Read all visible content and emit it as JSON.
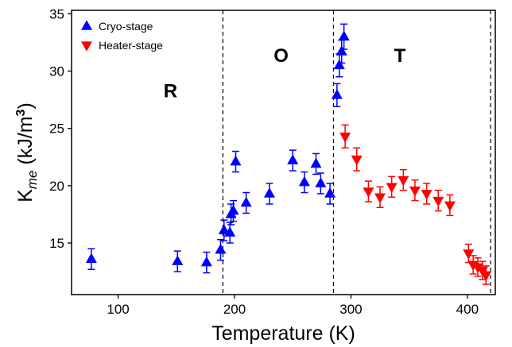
{
  "chart_data": {
    "type": "scatter",
    "xlabel": "Temperature (K)",
    "ylabel": {
      "main": "K",
      "sub": "me",
      "unit_pre": " (kJ/m",
      "sup": "3",
      "unit_post": ")"
    },
    "xlim": [
      60,
      424
    ],
    "ylim": [
      10.5,
      35.3
    ],
    "xticks": [
      100,
      200,
      300,
      400
    ],
    "yticks": [
      15,
      20,
      25,
      30,
      35
    ],
    "grid": false,
    "legend_position": "top-left",
    "phase_boundaries": [
      190,
      285,
      420
    ],
    "regions": [
      {
        "label": "R",
        "x": 145,
        "y": 27.7
      },
      {
        "label": "O",
        "x": 240,
        "y": 30.8
      },
      {
        "label": "T",
        "x": 342,
        "y": 30.8
      }
    ],
    "series": [
      {
        "name": "Cryo-stage",
        "color": "#0000ff",
        "marker": "triangle-up",
        "points": [
          {
            "x": 77,
            "y": 13.6,
            "err": 0.9
          },
          {
            "x": 151,
            "y": 13.4,
            "err": 0.9
          },
          {
            "x": 176,
            "y": 13.3,
            "err": 0.9
          },
          {
            "x": 188,
            "y": 14.4,
            "err": 0.9
          },
          {
            "x": 191,
            "y": 16.1,
            "err": 0.9
          },
          {
            "x": 196,
            "y": 15.9,
            "err": 0.9
          },
          {
            "x": 197,
            "y": 17.5,
            "err": 0.9
          },
          {
            "x": 199,
            "y": 17.8,
            "err": 0.9
          },
          {
            "x": 201,
            "y": 22.1,
            "err": 0.9
          },
          {
            "x": 210,
            "y": 18.5,
            "err": 0.9
          },
          {
            "x": 230,
            "y": 19.3,
            "err": 0.9
          },
          {
            "x": 250,
            "y": 22.2,
            "err": 0.9
          },
          {
            "x": 260,
            "y": 20.3,
            "err": 0.9
          },
          {
            "x": 270,
            "y": 21.9,
            "err": 0.9
          },
          {
            "x": 274,
            "y": 20.2,
            "err": 0.9
          },
          {
            "x": 282,
            "y": 19.3,
            "err": 0.9
          },
          {
            "x": 288,
            "y": 27.9,
            "err": 1.0
          },
          {
            "x": 290,
            "y": 30.5,
            "err": 1.0
          },
          {
            "x": 292,
            "y": 31.7,
            "err": 1.0
          },
          {
            "x": 294,
            "y": 33.0,
            "err": 1.1
          }
        ]
      },
      {
        "name": "Heater-stage",
        "color": "#ff0000",
        "marker": "triangle-down",
        "points": [
          {
            "x": 295,
            "y": 24.3,
            "err": 1.0
          },
          {
            "x": 305,
            "y": 22.3,
            "err": 1.0
          },
          {
            "x": 315,
            "y": 19.5,
            "err": 0.9
          },
          {
            "x": 325,
            "y": 19.0,
            "err": 0.9
          },
          {
            "x": 335,
            "y": 19.9,
            "err": 0.9
          },
          {
            "x": 345,
            "y": 20.5,
            "err": 0.9
          },
          {
            "x": 355,
            "y": 19.6,
            "err": 0.9
          },
          {
            "x": 365,
            "y": 19.3,
            "err": 0.9
          },
          {
            "x": 375,
            "y": 18.7,
            "err": 0.9
          },
          {
            "x": 385,
            "y": 18.3,
            "err": 0.9
          },
          {
            "x": 401,
            "y": 14.1,
            "err": 0.8
          },
          {
            "x": 405,
            "y": 13.1,
            "err": 0.8
          },
          {
            "x": 409,
            "y": 12.9,
            "err": 0.8
          },
          {
            "x": 413,
            "y": 12.6,
            "err": 0.8
          },
          {
            "x": 416,
            "y": 12.2,
            "err": 0.8
          }
        ]
      }
    ]
  }
}
